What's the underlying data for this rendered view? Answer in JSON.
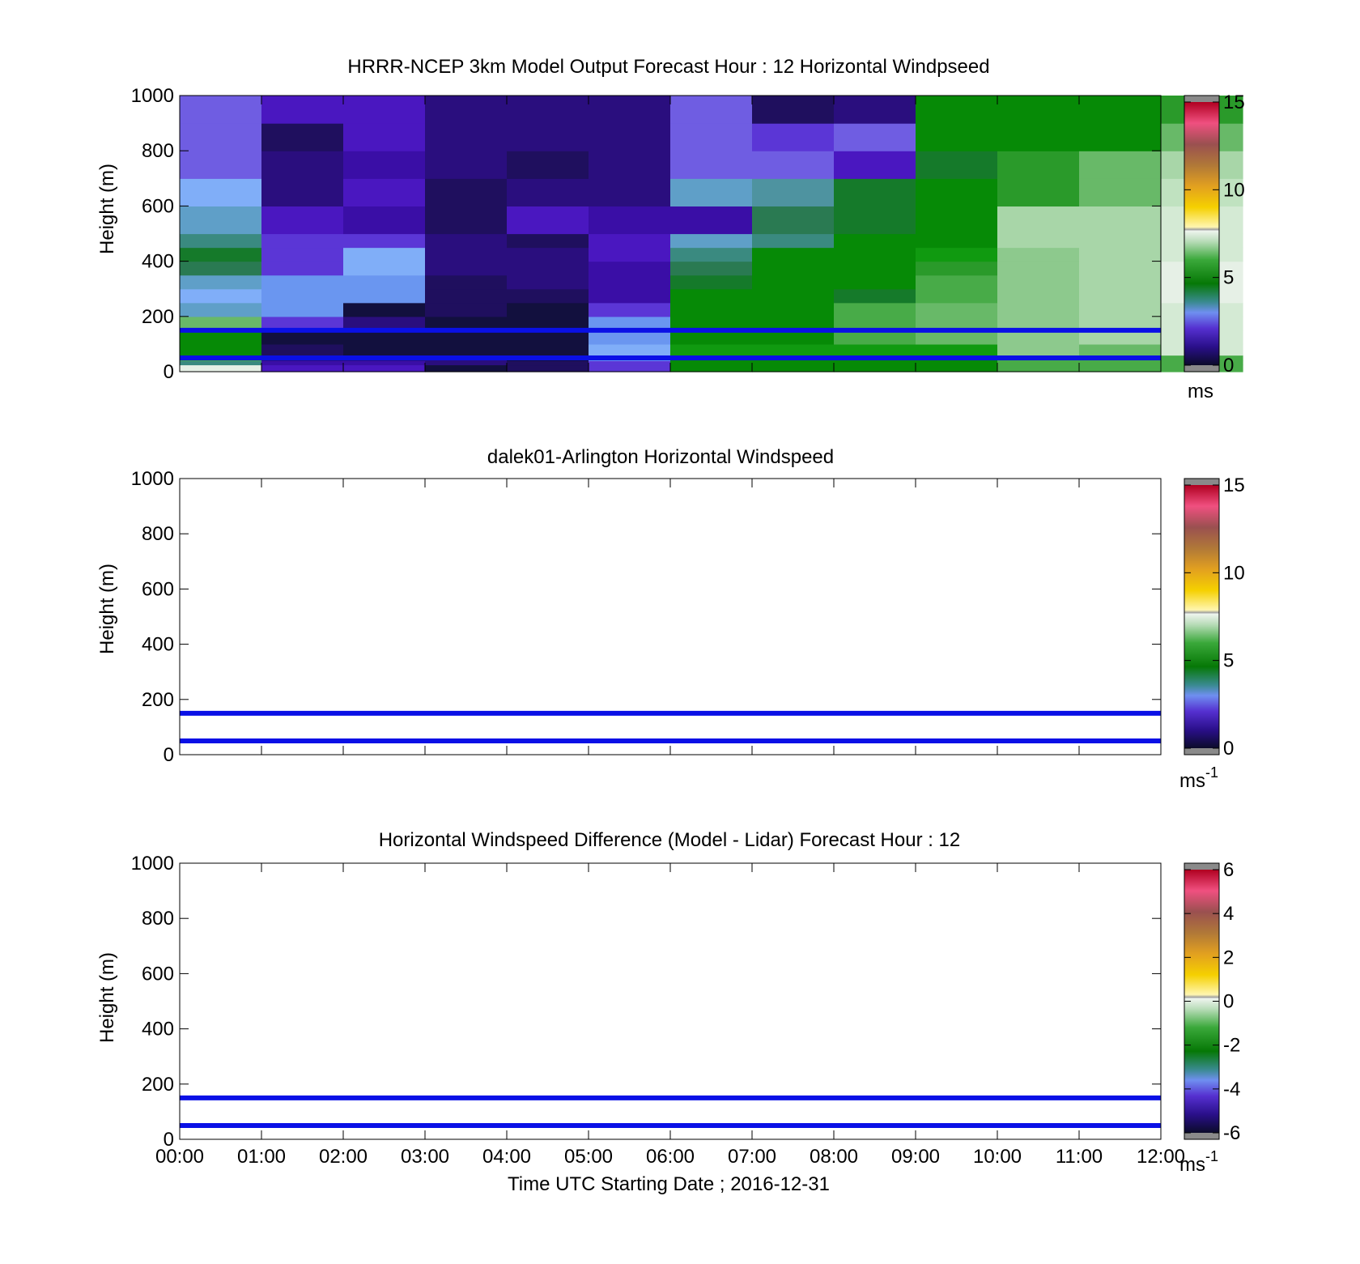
{
  "colors": {
    "reference_line": "#0a10e6",
    "axes": "#000000",
    "cell_palette": {
      "A": "#6f5de2",
      "B": "#4a17c0",
      "C": "#3a0ea6",
      "D": "#2a0e7e",
      "E": "#1f0f5e",
      "F": "#12103e",
      "G": "#5b36d6",
      "H": "#6a96f0",
      "I": "#80aef8",
      "J": "#5f9fc8",
      "K": "#4e93a0",
      "L": "#3a8a80",
      "M": "#2a7a52",
      "N": "#157a2a",
      "O": "#068a06",
      "P": "#109a10",
      "Q": "#2a9a2a",
      "R": "#48ab48",
      "S": "#68b968",
      "T": "#8dc98d",
      "U": "#a8d6a8",
      "V": "#c0e2c0",
      "W": "#d4ead4",
      "X": "#e6f0e6"
    }
  },
  "chart_data": [
    {
      "type": "heatmap",
      "title": "HRRR-NCEP 3km Model Output   Forecast Hour : 12 Horizontal Windpseed",
      "ylabel": "Height (m)",
      "xlabel": "",
      "ylim": [
        0,
        1000
      ],
      "xlim": [
        "00:00",
        "12:00"
      ],
      "y_ticks": [
        "0",
        "200",
        "400",
        "600",
        "800",
        "1000"
      ],
      "x_ticks": [
        "00:00",
        "01:00",
        "02:00",
        "03:00",
        "04:00",
        "05:00",
        "06:00",
        "07:00",
        "08:00",
        "09:00",
        "10:00",
        "11:00",
        "12:00"
      ],
      "show_x_tick_labels": false,
      "reference_lines_m": [
        150,
        50
      ],
      "height_bounds_m": [
        0,
        25,
        40,
        60,
        100,
        150,
        200,
        250,
        300,
        350,
        400,
        450,
        500,
        600,
        700,
        800,
        900,
        1000
      ],
      "cell_colors": [
        "XLROOSJIJMNLJIAAA",
        "BCDEFGHHHGGGBDDEB",
        "BCDFFDFHHIIGCBCBB",
        "FDDFFFEEEDDDEEDDD",
        "EEFFFFFEDDDEBDEDD",
        "GGHIHHGCCCBBCDDDD",
        "OOOPOOOONMLJCJAAA",
        "OOOPOOOOOOOLMKAGE",
        "OOOPRRRNOOOONNBAD",
        "OOOPSSSRRQPOOONOO",
        "RRRTTTTTTTTUUQQOO",
        "RRRSUUUUUUUUUSSOO",
        "RRRWWWWXXXWWWVUSQ"
      ],
      "colorbar": {
        "min": 0,
        "max": 15,
        "ticks": [
          "0",
          "5",
          "10",
          "15"
        ],
        "unit": "ms"
      }
    },
    {
      "type": "heatmap",
      "title": "dalek01-Arlington  Horizontal Windspeed",
      "ylabel": "Height (m)",
      "xlabel": "",
      "ylim": [
        0,
        1000
      ],
      "xlim": [
        "00:00",
        "12:00"
      ],
      "y_ticks": [
        "0",
        "200",
        "400",
        "600",
        "800",
        "1000"
      ],
      "x_ticks": [
        "00:00",
        "01:00",
        "02:00",
        "03:00",
        "04:00",
        "05:00",
        "06:00",
        "07:00",
        "08:00",
        "09:00",
        "10:00",
        "11:00",
        "12:00"
      ],
      "show_x_tick_labels": false,
      "reference_lines_m": [
        150,
        50
      ],
      "colorbar": {
        "min": 0,
        "max": 15,
        "ticks": [
          "0",
          "5",
          "10",
          "15"
        ],
        "unit": "ms",
        "unit_exponent": "-1"
      }
    },
    {
      "type": "heatmap",
      "title": "Horizontal Windspeed Difference (Model - Lidar) Forecast Hour : 12",
      "ylabel": "Height (m)",
      "xlabel": "Time UTC  Starting Date ; 2016-12-31",
      "ylim": [
        0,
        1000
      ],
      "xlim": [
        "00:00",
        "12:00"
      ],
      "y_ticks": [
        "0",
        "200",
        "400",
        "600",
        "800",
        "1000"
      ],
      "x_ticks": [
        "00:00",
        "01:00",
        "02:00",
        "03:00",
        "04:00",
        "05:00",
        "06:00",
        "07:00",
        "08:00",
        "09:00",
        "10:00",
        "11:00",
        "12:00"
      ],
      "show_x_tick_labels": true,
      "reference_lines_m": [
        150,
        50
      ],
      "colorbar": {
        "min": -6,
        "max": 6,
        "ticks": [
          "-6",
          "-4",
          "-2",
          "0",
          "2",
          "4",
          "6"
        ],
        "unit": "ms",
        "unit_exponent": "-1"
      }
    }
  ]
}
